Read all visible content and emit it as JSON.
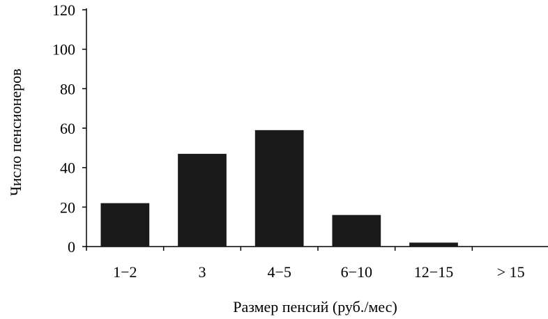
{
  "chart_data": {
    "type": "bar",
    "title": "",
    "categories": [
      "1−2",
      "3",
      "4−5",
      "6−10",
      "12−15",
      "> 15"
    ],
    "values": [
      22,
      47,
      59,
      16,
      2,
      0
    ],
    "xlabel": "Размер пенсий (руб./мес)",
    "ylabel": "Число пенсионеров",
    "ylim": [
      0,
      120
    ],
    "yticks": [
      0,
      20,
      40,
      60,
      80,
      100,
      120
    ],
    "grid": false,
    "legend": "none",
    "bar_color": "#1a1a1a"
  }
}
